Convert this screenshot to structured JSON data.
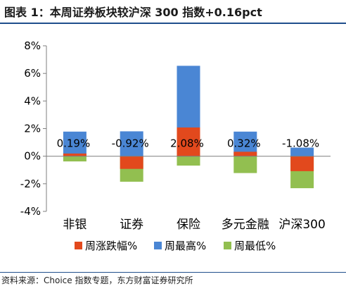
{
  "header": {
    "title": "图表 1：本周证券板块较沪深 300 指数+0.16pct"
  },
  "footer": {
    "source": "资料来源：Choice 指数专题，东方财富证券研究所"
  },
  "chart_data": {
    "type": "bar",
    "categories": [
      "非银",
      "证券",
      "保险",
      "多元金融",
      "沪深300"
    ],
    "series": [
      {
        "name": "周涨跌幅%",
        "color": "#e2491d",
        "values": [
          0.19,
          -0.92,
          2.08,
          0.32,
          -1.08
        ],
        "labels": [
          "0.19%",
          "-0.92%",
          "2.08%",
          "0.32%",
          "-1.08%"
        ]
      },
      {
        "name": "周最高%",
        "color": "#4a86d4",
        "values": [
          1.78,
          1.8,
          6.55,
          1.78,
          0.62
        ]
      },
      {
        "name": "周最低%",
        "color": "#92bf50",
        "values": [
          -0.38,
          -1.85,
          -0.68,
          -1.22,
          -2.32
        ]
      }
    ],
    "ylim": [
      -4,
      8
    ],
    "yticks": [
      "-4%",
      "-2%",
      "0%",
      "2%",
      "4%",
      "6%",
      "8%"
    ],
    "ytick_values": [
      -4,
      -2,
      0,
      2,
      4,
      6,
      8
    ],
    "legend_position": "bottom",
    "grid": false
  }
}
